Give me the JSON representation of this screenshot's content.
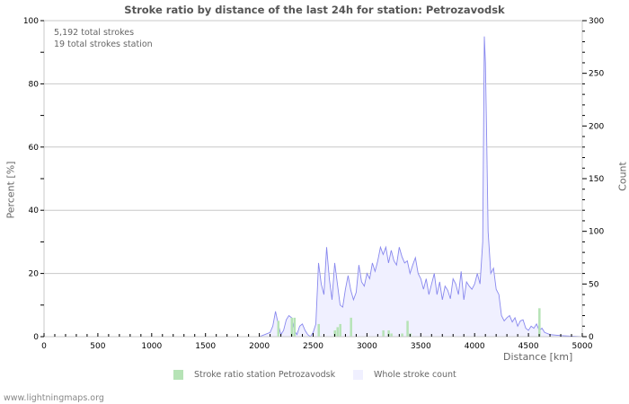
{
  "chart_data": {
    "type": "area",
    "title": "Stroke ratio by distance of the last 24h for station: Petrozavodsk",
    "xlabel": "Distance   [km]",
    "ylabel_left": "Percent   [%]",
    "ylabel_right": "Count",
    "xlim": [
      0,
      5000
    ],
    "ylim_left": [
      0,
      100
    ],
    "ylim_right": [
      0,
      300
    ],
    "x_ticks": [
      "0",
      "500",
      "1000",
      "1500",
      "2000",
      "2500",
      "3000",
      "3500",
      "4000",
      "4500",
      "5000"
    ],
    "y_ticks_left": [
      "0",
      "20",
      "40",
      "60",
      "80",
      "100"
    ],
    "y_ticks_right": [
      "0",
      "50",
      "100",
      "150",
      "200",
      "250",
      "300"
    ],
    "grid": true,
    "annotations": [
      "5,192 total strokes",
      "19 total strokes station"
    ],
    "legend": [
      {
        "name": "Stroke ratio station Petrozavodsk",
        "color": "#b6e3b6"
      },
      {
        "name": "Whole stroke count",
        "color": "#f0f0ff"
      }
    ],
    "series": [
      {
        "name": "Whole stroke count",
        "axis": "right",
        "color": "#8888ee",
        "fill": "#f0f0ff",
        "x": [
          2000,
          2050,
          2100,
          2125,
          2150,
          2175,
          2200,
          2225,
          2250,
          2275,
          2300,
          2325,
          2350,
          2375,
          2400,
          2425,
          2450,
          2475,
          2500,
          2525,
          2550,
          2575,
          2600,
          2625,
          2650,
          2675,
          2700,
          2725,
          2750,
          2775,
          2800,
          2825,
          2850,
          2875,
          2900,
          2925,
          2950,
          2975,
          3000,
          3025,
          3050,
          3075,
          3100,
          3125,
          3150,
          3175,
          3200,
          3225,
          3250,
          3275,
          3300,
          3325,
          3350,
          3375,
          3400,
          3425,
          3450,
          3475,
          3500,
          3525,
          3550,
          3575,
          3600,
          3625,
          3650,
          3675,
          3700,
          3725,
          3750,
          3775,
          3800,
          3825,
          3850,
          3875,
          3900,
          3925,
          3950,
          3975,
          4000,
          4025,
          4050,
          4075,
          4090,
          4100,
          4110,
          4125,
          4150,
          4175,
          4200,
          4225,
          4250,
          4275,
          4300,
          4325,
          4350,
          4375,
          4400,
          4425,
          4450,
          4475,
          4500,
          4525,
          4550,
          4575,
          4600,
          4625,
          4650,
          4700,
          4800,
          5000
        ],
        "values": [
          0,
          2,
          4,
          10,
          24,
          12,
          2,
          6,
          16,
          20,
          18,
          6,
          2,
          10,
          12,
          6,
          2,
          0,
          4,
          12,
          70,
          50,
          40,
          85,
          55,
          35,
          70,
          50,
          30,
          28,
          45,
          58,
          44,
          35,
          42,
          68,
          52,
          48,
          60,
          55,
          70,
          62,
          72,
          85,
          78,
          85,
          70,
          82,
          72,
          68,
          85,
          76,
          70,
          72,
          60,
          68,
          75,
          60,
          55,
          45,
          55,
          40,
          50,
          60,
          40,
          52,
          35,
          48,
          44,
          36,
          55,
          50,
          40,
          62,
          35,
          52,
          48,
          45,
          50,
          60,
          50,
          90,
          285,
          260,
          200,
          100,
          60,
          65,
          45,
          40,
          20,
          15,
          18,
          20,
          14,
          18,
          10,
          15,
          16,
          8,
          6,
          10,
          8,
          12,
          6,
          8,
          4,
          2,
          1,
          0
        ]
      },
      {
        "name": "Stroke ratio station Petrozavodsk",
        "axis": "left",
        "color": "#b6e3b6",
        "type": "bar",
        "x": [
          2175,
          2300,
          2325,
          2550,
          2700,
          2725,
          2750,
          2850,
          3150,
          3200,
          3225,
          3325,
          3375,
          3400,
          4600
        ],
        "values": [
          5,
          6,
          6,
          4,
          2,
          3,
          4,
          6,
          2,
          2,
          1,
          1,
          5,
          1,
          9
        ]
      }
    ]
  },
  "footer": "www.lightningmaps.org"
}
